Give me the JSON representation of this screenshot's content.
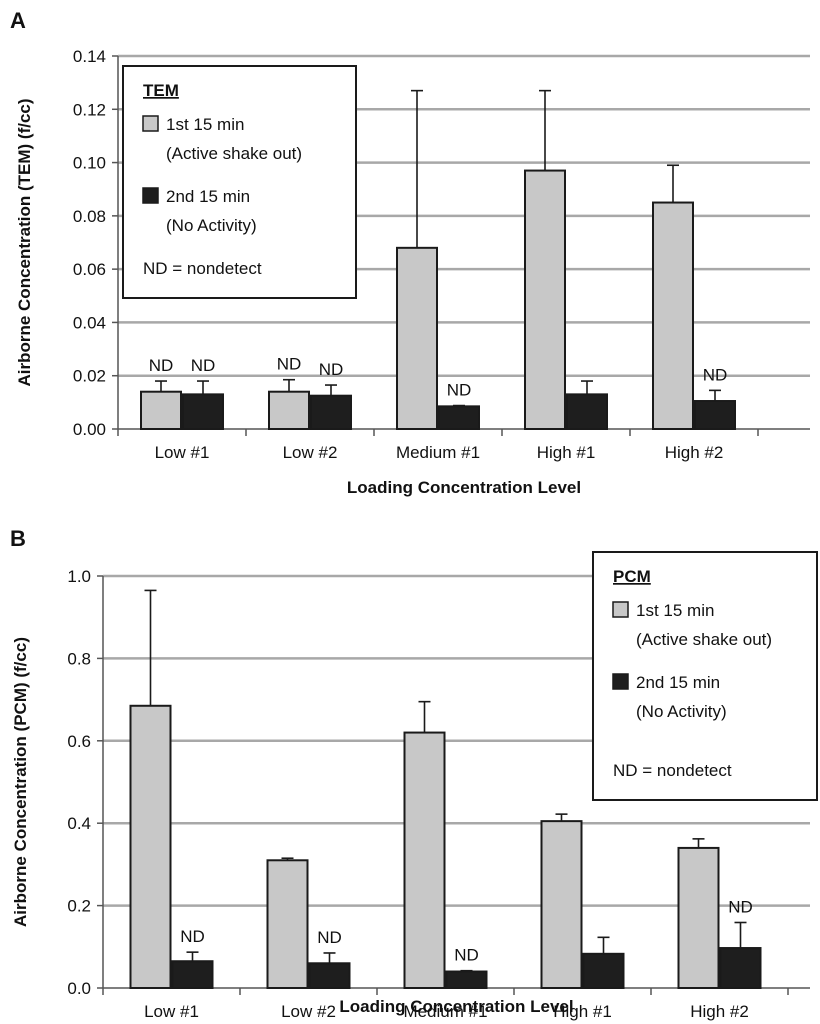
{
  "colors": {
    "series1": "#c8c8c8",
    "series2": "#1e1e1e",
    "grid": "#a8a8a8",
    "axis": "#555555"
  },
  "chart_data": [
    {
      "panel": "A",
      "type": "bar",
      "xlabel": "Loading Concentration Level",
      "ylabel": "Airborne Concentration (TEM) (f/cc)",
      "ylim": [
        0,
        0.14
      ],
      "yticks": [
        0.0,
        0.02,
        0.04,
        0.06,
        0.08,
        0.1,
        0.12,
        0.14
      ],
      "ytick_labels": [
        "0.00",
        "0.02",
        "0.04",
        "0.06",
        "0.08",
        "0.10",
        "0.12",
        "0.14"
      ],
      "ytick_decimals": 2,
      "grid": true,
      "categories": [
        "Low #1",
        "Low #2",
        "Medium #1",
        "High #1",
        "High #2"
      ],
      "series": [
        {
          "name": "1st 15 min (Active shake out)",
          "values": [
            0.014,
            0.014,
            0.068,
            0.097,
            0.085
          ],
          "errors": [
            0.004,
            0.0045,
            0.059,
            0.03,
            0.014
          ],
          "nd": [
            true,
            true,
            false,
            false,
            false
          ]
        },
        {
          "name": "2nd 15 min (No Activity)",
          "values": [
            0.013,
            0.0125,
            0.0085,
            0.013,
            0.0105
          ],
          "errors": [
            0.005,
            0.004,
            0.0003,
            0.005,
            0.004
          ],
          "nd": [
            true,
            true,
            true,
            false,
            true
          ]
        }
      ],
      "nd_label": "ND",
      "legend": {
        "placement": "top-left",
        "title": "TEM",
        "entries": [
          {
            "line1": "1st 15 min",
            "line2": "(Active shake out)"
          },
          {
            "line1": "2nd 15 min",
            "line2": "(No Activity)"
          }
        ],
        "note": "ND = nondetect"
      }
    },
    {
      "panel": "B",
      "type": "bar",
      "xlabel": "Loading Concentration Level",
      "ylabel": "Airborne Concentration (PCM) (f/cc)",
      "ylim": [
        0,
        1.0
      ],
      "yticks": [
        0.0,
        0.2,
        0.4,
        0.6,
        0.8,
        1.0
      ],
      "ytick_labels": [
        "0.0",
        "0.2",
        "0.4",
        "0.6",
        "0.8",
        "1.0"
      ],
      "ytick_decimals": 1,
      "grid": true,
      "categories": [
        "Low #1",
        "Low #2",
        "Medium #1",
        "High #1",
        "High #2"
      ],
      "series": [
        {
          "name": "1st 15 min (Active shake out)",
          "values": [
            0.685,
            0.31,
            0.62,
            0.405,
            0.34
          ],
          "errors": [
            0.28,
            0.005,
            0.075,
            0.017,
            0.022
          ],
          "nd": [
            false,
            false,
            false,
            false,
            false
          ]
        },
        {
          "name": "2nd 15 min (No Activity)",
          "values": [
            0.065,
            0.06,
            0.04,
            0.083,
            0.097
          ],
          "errors": [
            0.022,
            0.025,
            0.002,
            0.04,
            0.062
          ],
          "nd": [
            true,
            true,
            true,
            false,
            true
          ]
        }
      ],
      "nd_label": "ND",
      "legend": {
        "placement": "top-right",
        "title": "PCM",
        "entries": [
          {
            "line1": "1st 15 min",
            "line2": "(Active shake out)"
          },
          {
            "line1": "2nd 15 min",
            "line2": "(No Activity)"
          }
        ],
        "note": "ND = nondetect"
      }
    }
  ],
  "panels": {
    "a_letter": "A",
    "b_letter": "B"
  }
}
